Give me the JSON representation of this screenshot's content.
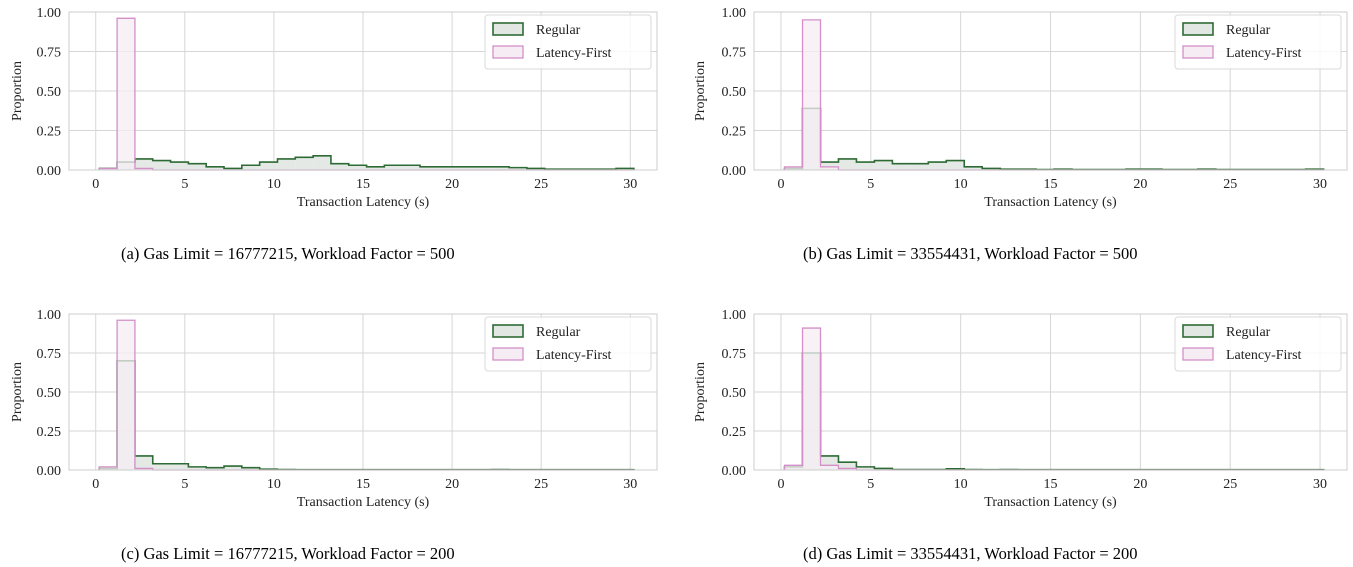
{
  "chart_data": [
    {
      "type": "histogram",
      "caption": "(a) Gas Limit = 16777215, Workload Factor = 500",
      "xlabel": "Transaction Latency (s)",
      "ylabel": "Proportion",
      "xlim": [
        -1.5,
        31.5
      ],
      "ylim": [
        0,
        1.0
      ],
      "xticks": [
        "0",
        "5",
        "10",
        "15",
        "20",
        "25",
        "30"
      ],
      "yticks": [
        "0.00",
        "0.25",
        "0.50",
        "0.75",
        "1.00"
      ],
      "grid": true,
      "legend_position": "top-right",
      "bin_edges": [
        0.2,
        1.2,
        2.2,
        3.2,
        4.2,
        5.2,
        6.2,
        7.2,
        8.2,
        9.2,
        10.2,
        11.2,
        12.2,
        13.2,
        14.2,
        15.2,
        16.2,
        17.2,
        18.2,
        19.2,
        20.2,
        21.2,
        22.2,
        23.2,
        24.2,
        25.2,
        26.2,
        27.2,
        28.2,
        29.2,
        30.2
      ],
      "series": [
        {
          "name": "Regular",
          "color": "#2e6b34",
          "fill": "#e2e7e3",
          "values": [
            0.01,
            0.05,
            0.07,
            0.06,
            0.05,
            0.04,
            0.02,
            0.01,
            0.03,
            0.05,
            0.07,
            0.08,
            0.09,
            0.04,
            0.03,
            0.02,
            0.03,
            0.03,
            0.02,
            0.02,
            0.02,
            0.02,
            0.02,
            0.015,
            0.01,
            0.005,
            0.005,
            0.005,
            0.005,
            0.01
          ]
        },
        {
          "name": "Latency-First",
          "color": "#d48fc8",
          "fill": "#f6edf4",
          "values": [
            0.01,
            0.96,
            0.01,
            0,
            0,
            0,
            0,
            0,
            0,
            0,
            0,
            0,
            0,
            0,
            0,
            0,
            0,
            0,
            0,
            0,
            0,
            0,
            0,
            0,
            0,
            0,
            0,
            0,
            0,
            0
          ]
        }
      ]
    },
    {
      "type": "histogram",
      "caption": "(b) Gas Limit = 33554431, Workload Factor = 500",
      "xlabel": "Transaction Latency (s)",
      "ylabel": "Proportion",
      "xlim": [
        -1.5,
        31.5
      ],
      "ylim": [
        0,
        1.0
      ],
      "xticks": [
        "0",
        "5",
        "10",
        "15",
        "20",
        "25",
        "30"
      ],
      "yticks": [
        "0.00",
        "0.25",
        "0.50",
        "0.75",
        "1.00"
      ],
      "grid": true,
      "legend_position": "top-right",
      "bin_edges": [
        0.2,
        1.2,
        2.2,
        3.2,
        4.2,
        5.2,
        6.2,
        7.2,
        8.2,
        9.2,
        10.2,
        11.2,
        12.2,
        13.2,
        14.2,
        15.2,
        16.2,
        17.2,
        18.2,
        19.2,
        20.2,
        21.2,
        22.2,
        23.2,
        24.2,
        25.2,
        26.2,
        27.2,
        28.2,
        29.2,
        30.2
      ],
      "series": [
        {
          "name": "Regular",
          "color": "#2e6b34",
          "fill": "#e2e7e3",
          "values": [
            0.01,
            0.39,
            0.05,
            0.07,
            0.05,
            0.06,
            0.04,
            0.04,
            0.05,
            0.06,
            0.02,
            0.01,
            0.005,
            0.005,
            0.003,
            0.005,
            0.003,
            0.003,
            0.003,
            0.005,
            0.005,
            0.003,
            0.003,
            0.005,
            0.003,
            0.003,
            0.003,
            0.003,
            0.003,
            0.005
          ]
        },
        {
          "name": "Latency-First",
          "color": "#d48fc8",
          "fill": "#f6edf4",
          "values": [
            0.02,
            0.95,
            0.02,
            0,
            0,
            0,
            0,
            0,
            0,
            0,
            0,
            0,
            0,
            0,
            0,
            0,
            0,
            0,
            0,
            0,
            0,
            0,
            0,
            0,
            0,
            0,
            0,
            0,
            0,
            0
          ]
        }
      ]
    },
    {
      "type": "histogram",
      "caption": "(c) Gas Limit = 16777215, Workload Factor = 200",
      "xlabel": "Transaction Latency (s)",
      "ylabel": "Proportion",
      "xlim": [
        -1.5,
        31.5
      ],
      "ylim": [
        0,
        1.0
      ],
      "xticks": [
        "0",
        "5",
        "10",
        "15",
        "20",
        "25",
        "30"
      ],
      "yticks": [
        "0.00",
        "0.25",
        "0.50",
        "0.75",
        "1.00"
      ],
      "grid": true,
      "legend_position": "top-right",
      "bin_edges": [
        0.2,
        1.2,
        2.2,
        3.2,
        4.2,
        5.2,
        6.2,
        7.2,
        8.2,
        9.2,
        10.2,
        11.2,
        12.2,
        13.2,
        14.2,
        15.2,
        16.2,
        17.2,
        18.2,
        19.2,
        20.2,
        21.2,
        22.2,
        23.2,
        24.2,
        25.2,
        26.2,
        27.2,
        28.2,
        29.2,
        30.2
      ],
      "series": [
        {
          "name": "Regular",
          "color": "#2e6b34",
          "fill": "#e2e7e3",
          "values": [
            0.01,
            0.7,
            0.09,
            0.04,
            0.04,
            0.02,
            0.015,
            0.025,
            0.015,
            0.005,
            0.003,
            0.002,
            0.002,
            0.002,
            0.002,
            0.002,
            0.002,
            0.002,
            0.002,
            0.002,
            0.002,
            0.002,
            0.003,
            0.002,
            0.002,
            0.002,
            0.002,
            0.002,
            0.002,
            0.002
          ]
        },
        {
          "name": "Latency-First",
          "color": "#d48fc8",
          "fill": "#f6edf4",
          "values": [
            0.02,
            0.96,
            0.01,
            0,
            0,
            0,
            0,
            0,
            0,
            0,
            0,
            0,
            0,
            0,
            0,
            0,
            0,
            0,
            0,
            0,
            0,
            0,
            0,
            0,
            0,
            0,
            0,
            0,
            0,
            0
          ]
        }
      ]
    },
    {
      "type": "histogram",
      "caption": "(d) Gas Limit = 33554431, Workload Factor = 200",
      "xlabel": "Transaction Latency (s)",
      "ylabel": "Proportion",
      "xlim": [
        -1.5,
        31.5
      ],
      "ylim": [
        0,
        1.0
      ],
      "xticks": [
        "0",
        "5",
        "10",
        "15",
        "20",
        "25",
        "30"
      ],
      "yticks": [
        "0.00",
        "0.25",
        "0.50",
        "0.75",
        "1.00"
      ],
      "grid": true,
      "legend_position": "top-right",
      "bin_edges": [
        0.2,
        1.2,
        2.2,
        3.2,
        4.2,
        5.2,
        6.2,
        7.2,
        8.2,
        9.2,
        10.2,
        11.2,
        12.2,
        13.2,
        14.2,
        15.2,
        16.2,
        17.2,
        18.2,
        19.2,
        20.2,
        21.2,
        22.2,
        23.2,
        24.2,
        25.2,
        26.2,
        27.2,
        28.2,
        29.2,
        30.2
      ],
      "series": [
        {
          "name": "Regular",
          "color": "#2e6b34",
          "fill": "#e2e7e3",
          "values": [
            0.02,
            0.75,
            0.09,
            0.05,
            0.02,
            0.01,
            0.003,
            0.003,
            0.003,
            0.008,
            0.003,
            0.002,
            0.003,
            0.002,
            0.002,
            0.002,
            0.002,
            0.002,
            0.002,
            0.002,
            0.002,
            0.002,
            0.002,
            0.002,
            0.002,
            0.002,
            0.002,
            0.002,
            0.002,
            0.002
          ]
        },
        {
          "name": "Latency-First",
          "color": "#d48fc8",
          "fill": "#f6edf4",
          "values": [
            0.03,
            0.91,
            0.03,
            0.01,
            0,
            0,
            0,
            0,
            0,
            0,
            0,
            0,
            0,
            0,
            0,
            0,
            0,
            0,
            0,
            0,
            0,
            0,
            0,
            0,
            0,
            0,
            0,
            0,
            0,
            0
          ]
        }
      ]
    }
  ]
}
